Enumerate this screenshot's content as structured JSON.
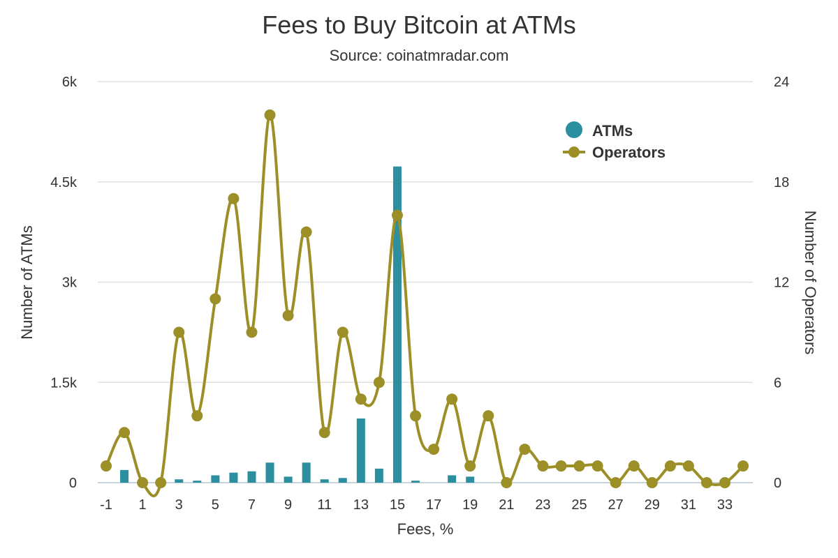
{
  "chart_data": {
    "type": "bar+line",
    "title": "Fees to Buy Bitcoin at ATMs",
    "subtitle": "Source: coinatmradar.com",
    "xlabel": "Fees, %",
    "ylabel_left": "Number of ATMs",
    "ylabel_right": "Number of Operators",
    "x": [
      -1,
      0,
      1,
      2,
      3,
      4,
      5,
      6,
      7,
      8,
      9,
      10,
      11,
      12,
      13,
      14,
      15,
      16,
      17,
      18,
      19,
      20,
      21,
      22,
      23,
      24,
      25,
      26,
      27,
      28,
      29,
      30,
      31,
      32,
      33,
      34
    ],
    "x_ticks": [
      -1,
      1,
      3,
      5,
      7,
      9,
      11,
      13,
      15,
      17,
      19,
      21,
      23,
      25,
      27,
      29,
      31,
      33
    ],
    "x_tick_labels": [
      "-1",
      "1",
      "3",
      "5",
      "7",
      "9",
      "11",
      "13",
      "15",
      "17",
      "19",
      "21",
      "23",
      "25",
      "27",
      "29",
      "31",
      "33"
    ],
    "y_left": {
      "min": 0,
      "max": 6000,
      "ticks": [
        0,
        1500,
        3000,
        4500,
        6000
      ],
      "tick_labels": [
        "0",
        "1.5k",
        "3k",
        "4.5k",
        "6k"
      ]
    },
    "y_right": {
      "min": 0,
      "max": 24,
      "ticks": [
        0,
        6,
        12,
        18,
        24
      ],
      "tick_labels": [
        "0",
        "6",
        "12",
        "18",
        "24"
      ]
    },
    "grid": true,
    "legend_position": "top-right",
    "series": [
      {
        "name": "ATMs",
        "type": "bar",
        "axis": "left",
        "color": "#2b8fa0",
        "values": [
          0,
          190,
          0,
          0,
          50,
          30,
          110,
          150,
          170,
          300,
          90,
          300,
          50,
          70,
          960,
          210,
          4730,
          30,
          0,
          110,
          90,
          0,
          0,
          0,
          0,
          0,
          0,
          0,
          0,
          0,
          0,
          0,
          0,
          0,
          0,
          0
        ]
      },
      {
        "name": "Operators",
        "type": "line",
        "axis": "right",
        "color": "#9c8f27",
        "values": [
          1,
          3,
          0,
          0,
          9,
          4,
          11,
          17,
          9,
          22,
          10,
          15,
          3,
          9,
          5,
          6,
          16,
          4,
          2,
          5,
          1,
          4,
          0,
          2,
          1,
          1,
          1,
          1,
          0,
          1,
          0,
          1,
          1,
          0,
          0,
          1
        ]
      }
    ]
  }
}
